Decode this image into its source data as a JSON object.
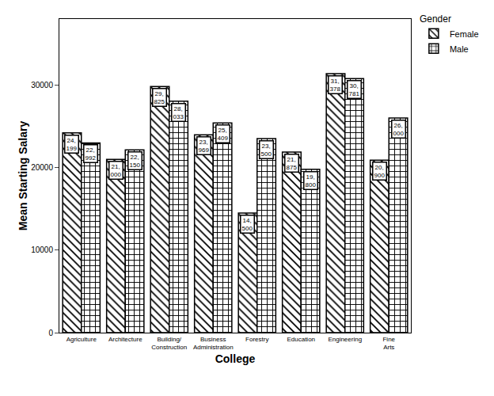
{
  "chart_data": {
    "type": "bar",
    "x_label": "College",
    "y_label": "Mean Starting Salary",
    "legend_title": "Gender",
    "legend": "top right",
    "categories": [
      "Agriculture",
      "Architecture",
      "Building/Construction",
      "Business Administration",
      "Forestry",
      "Education",
      "Engineering",
      "Fine Arts"
    ],
    "series": [
      {
        "name": "Female",
        "color": "#000000",
        "marker": "diagonal",
        "values": [
          24199,
          21000,
          29825,
          23969,
          14500,
          21875,
          31378,
          20900
        ],
        "value_labels": [
          "24,199",
          "21,000",
          "29,825",
          "23,969",
          "14,500",
          "21,875",
          "31,378",
          "20,900"
        ]
      },
      {
        "name": "Male",
        "color": "#000000",
        "marker": "cross",
        "values": [
          22992,
          22150,
          28033,
          25409,
          23500,
          19800,
          30781,
          26000
        ],
        "value_labels": [
          "22,992",
          "22,150",
          "28,033",
          "25,409",
          "23,500",
          "19,800",
          "30,781",
          "26,000"
        ]
      }
    ],
    "ylim": [
      0,
      38000
    ],
    "yticks": [
      0,
      10000,
      20000,
      30000
    ],
    "grid": false,
    "data_labels": true
  }
}
